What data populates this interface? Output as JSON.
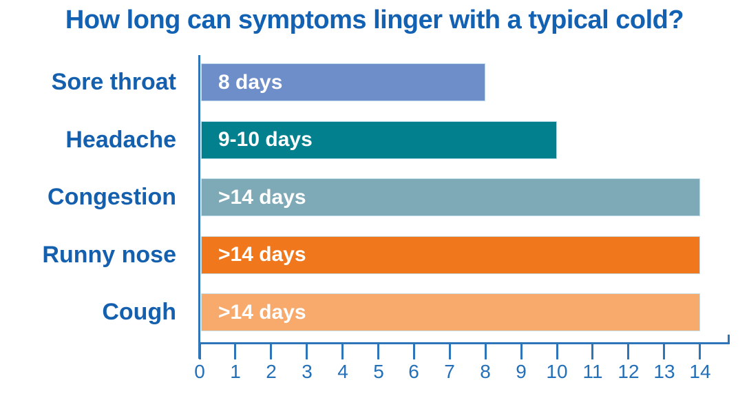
{
  "title": "How long can symptoms linger with a typical cold?",
  "chart_data": {
    "type": "bar",
    "orientation": "horizontal",
    "title": "How long can symptoms linger with a typical cold?",
    "xlabel": "",
    "ylabel": "",
    "categories": [
      "Sore throat",
      "Headache",
      "Congestion",
      "Runny nose",
      "Cough"
    ],
    "values": [
      8,
      10,
      14,
      14,
      14
    ],
    "bar_labels": [
      "8 days",
      "9-10 days",
      ">14 days",
      ">14 days",
      ">14 days"
    ],
    "bar_colors": [
      "#6d8ec9",
      "#02808e",
      "#7ea9b6",
      "#f1771d",
      "#f8a96c"
    ],
    "xlim": [
      0,
      14.8
    ],
    "x_ticks": [
      0,
      1,
      2,
      3,
      4,
      5,
      6,
      7,
      8,
      9,
      10,
      11,
      12,
      13,
      14
    ],
    "grid": false,
    "legend": false
  },
  "colors": {
    "title_text": "#1261b2",
    "category_text": "#1560ae",
    "axis_line": "#2e74b8",
    "tick_text": "#2470b8",
    "bar_value_text": "#ffffff"
  }
}
